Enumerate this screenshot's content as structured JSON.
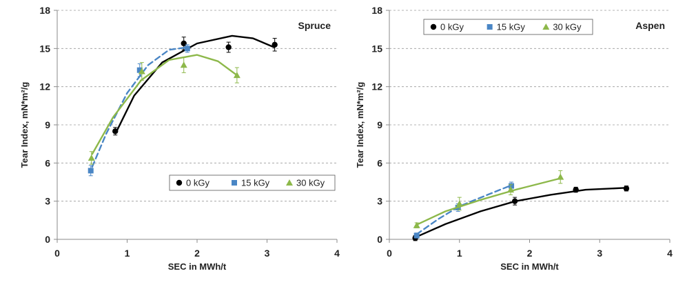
{
  "chart_data": [
    {
      "type": "scatter",
      "title": "Spruce",
      "xlabel": "SEC in MWh/t",
      "ylabel": "Tear Index, mN*m²/g",
      "xlim": [
        0,
        4
      ],
      "ylim": [
        0,
        18
      ],
      "x_ticks": [
        "0",
        "1",
        "2",
        "3",
        "4"
      ],
      "y_ticks": [
        "0",
        "3",
        "6",
        "9",
        "12",
        "15",
        "18"
      ],
      "grid": "horizontal dashed",
      "legend_position": "bottom-right",
      "series": [
        {
          "name": "0 kGy",
          "color": "#000000",
          "marker": "circle",
          "line": "solid",
          "x": [
            0.83,
            1.81,
            2.45,
            3.11
          ],
          "y": [
            8.5,
            15.4,
            15.1,
            15.3
          ],
          "err": [
            0.3,
            0.5,
            0.4,
            0.5
          ],
          "fit": [
            [
              0.85,
              8.5
            ],
            [
              1.1,
              11.3
            ],
            [
              1.5,
              13.9
            ],
            [
              2.0,
              15.4
            ],
            [
              2.5,
              16.0
            ],
            [
              2.8,
              15.8
            ],
            [
              3.1,
              15.1
            ]
          ]
        },
        {
          "name": "15 kGy",
          "color": "#4a86c5",
          "marker": "square",
          "line": "dashed",
          "x": [
            0.48,
            1.18,
            1.86
          ],
          "y": [
            5.4,
            13.3,
            15.0
          ],
          "err": [
            0.4,
            0.5,
            0.3
          ],
          "fit": [
            [
              0.5,
              5.7
            ],
            [
              0.7,
              8.3
            ],
            [
              1.0,
              11.5
            ],
            [
              1.3,
              13.7
            ],
            [
              1.6,
              14.9
            ],
            [
              1.87,
              15.1
            ]
          ]
        },
        {
          "name": "30 kGy",
          "color": "#8db84a",
          "marker": "triangle",
          "line": "solid",
          "x": [
            0.49,
            1.21,
            1.81,
            2.57
          ],
          "y": [
            6.4,
            13.2,
            13.7,
            12.9
          ],
          "err": [
            0.5,
            0.7,
            0.6,
            0.6
          ],
          "fit": [
            [
              0.5,
              6.7
            ],
            [
              0.8,
              9.6
            ],
            [
              1.2,
              12.5
            ],
            [
              1.6,
              14.1
            ],
            [
              2.0,
              14.5
            ],
            [
              2.3,
              14.0
            ],
            [
              2.57,
              12.9
            ]
          ]
        }
      ]
    },
    {
      "type": "scatter",
      "title": "Aspen",
      "xlabel": "SEC in MWh/t",
      "ylabel": "Tear Index, mN*m²/g",
      "xlim": [
        0,
        4
      ],
      "ylim": [
        0,
        18
      ],
      "x_ticks": [
        "0",
        "1",
        "2",
        "3",
        "4"
      ],
      "y_ticks": [
        "0",
        "3",
        "6",
        "9",
        "12",
        "15",
        "18"
      ],
      "grid": "horizontal dashed",
      "legend_position": "top-left",
      "series": [
        {
          "name": "0 kGy",
          "color": "#000000",
          "marker": "circle",
          "line": "solid",
          "x": [
            0.37,
            1.79,
            2.66,
            3.38
          ],
          "y": [
            0.1,
            3.0,
            3.9,
            4.0
          ],
          "err": [
            0.2,
            0.3,
            0.2,
            0.2
          ],
          "fit": [
            [
              0.37,
              0.15
            ],
            [
              0.8,
              1.2
            ],
            [
              1.3,
              2.2
            ],
            [
              1.8,
              3.0
            ],
            [
              2.3,
              3.5
            ],
            [
              2.8,
              3.9
            ],
            [
              3.38,
              4.05
            ]
          ]
        },
        {
          "name": "15 kGy",
          "color": "#4a86c5",
          "marker": "square",
          "line": "dashed",
          "x": [
            0.39,
            0.98,
            1.74
          ],
          "y": [
            0.3,
            2.5,
            4.2
          ],
          "err": [
            0.2,
            0.3,
            0.3
          ],
          "fit": [
            [
              0.39,
              0.4
            ],
            [
              0.7,
              1.6
            ],
            [
              1.0,
              2.6
            ],
            [
              1.4,
              3.5
            ],
            [
              1.74,
              4.25
            ]
          ]
        },
        {
          "name": "30 kGy",
          "color": "#8db84a",
          "marker": "triangle",
          "line": "solid",
          "x": [
            0.39,
            1.0,
            1.73,
            2.44
          ],
          "y": [
            1.1,
            2.8,
            3.9,
            4.9
          ],
          "err": [
            0.2,
            0.5,
            0.4,
            0.5
          ],
          "fit": [
            [
              0.39,
              1.15
            ],
            [
              0.8,
              2.2
            ],
            [
              1.3,
              3.1
            ],
            [
              1.8,
              3.9
            ],
            [
              2.44,
              4.8
            ]
          ]
        }
      ]
    }
  ]
}
